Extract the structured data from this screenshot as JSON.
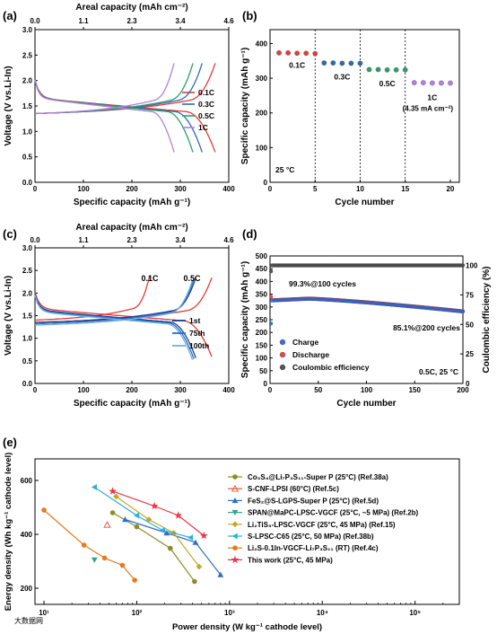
{
  "colors": {
    "c01": "#e83a3a",
    "c03": "#2b6cb0",
    "c05": "#2e9e6e",
    "c1": "#b57edc",
    "dark": "#1d3f8a",
    "mid": "#2f6fbf",
    "light": "#6fb3e6",
    "charge": "#3b6fd4",
    "discharge": "#e04a4a",
    "ce": "#555555"
  },
  "chart_data": [
    {
      "panel": "(a)",
      "type": "line",
      "xlabel": "Specific capacity (mAh g⁻¹)",
      "x2label": "Areal capacity (mAh cm⁻²)",
      "ylabel": "Voltage (V vs.Li-In)",
      "xlim": [
        0,
        400
      ],
      "ylim": [
        0,
        3.0
      ],
      "xticks": [
        "0",
        "100",
        "200",
        "300",
        "400"
      ],
      "yticks": [
        "0.0",
        "0.5",
        "1.0",
        "1.5",
        "2.0",
        "2.5",
        "3.0"
      ],
      "x2ticks": [
        "0.0",
        "1.1",
        "2.3",
        "3.4",
        "4.6"
      ],
      "series": [
        {
          "name": "0.1C",
          "color": "#e83a3a",
          "capacity": 372
        },
        {
          "name": "0.3C",
          "color": "#2b6cb0",
          "capacity": 345
        },
        {
          "name": "0.5C",
          "color": "#2e9e6e",
          "capacity": 326
        },
        {
          "name": "1C",
          "color": "#b57edc",
          "capacity": 287
        }
      ]
    },
    {
      "panel": "(b)",
      "type": "scatter",
      "xlabel": "Cycle number",
      "ylabel": "Specific capacity (mAh g⁻¹)",
      "xlim": [
        0,
        21
      ],
      "ylim": [
        0,
        440
      ],
      "xticks": [
        "0",
        "5",
        "10",
        "15",
        "20"
      ],
      "yticks": [
        "0",
        "100",
        "200",
        "300",
        "400"
      ],
      "note": "25 °C",
      "series": [
        {
          "name": "0.1C",
          "color": "#e83a3a",
          "x": [
            1,
            2,
            3,
            4,
            5
          ],
          "values": [
            373,
            373,
            372,
            372,
            371
          ]
        },
        {
          "name": "0.3C",
          "color": "#2b6cb0",
          "x": [
            6,
            7,
            8,
            9,
            10
          ],
          "values": [
            344,
            344,
            343,
            343,
            343
          ]
        },
        {
          "name": "0.5C",
          "color": "#2e9e6e",
          "x": [
            11,
            12,
            13,
            14,
            15
          ],
          "values": [
            325,
            325,
            324,
            324,
            324
          ]
        },
        {
          "name": "1C",
          "color": "#b57edc",
          "x": [
            16,
            17,
            18,
            19,
            20
          ],
          "values": [
            287,
            287,
            286,
            286,
            286
          ]
        }
      ],
      "labels": [
        "0.1C",
        "0.3C",
        "0.5C",
        "1C",
        "(4.35 mA cm⁻²)"
      ]
    },
    {
      "panel": "(c)",
      "type": "line",
      "xlabel": "Specific capacity (mAh g⁻¹)",
      "x2label": "Areal capacity (mAh cm⁻²)",
      "ylabel": "Voltage (V vs.Li-In)",
      "xlim": [
        0,
        400
      ],
      "ylim": [
        0,
        3.0
      ],
      "xticks": [
        "0",
        "100",
        "200",
        "300",
        "400"
      ],
      "yticks": [
        "0.0",
        "0.5",
        "1.0",
        "1.5",
        "2.0",
        "2.5",
        "3.0"
      ],
      "x2ticks": [
        "0.0",
        "1.1",
        "2.3",
        "3.4",
        "4.6"
      ],
      "labels": [
        "0.1C",
        "0.5C"
      ],
      "series": [
        {
          "name": "1st",
          "color": "#1d3f8a"
        },
        {
          "name": "75th",
          "color": "#2f6fbf"
        },
        {
          "name": "100th",
          "color": "#6fb3e6"
        }
      ]
    },
    {
      "panel": "(d)",
      "type": "scatter",
      "xlabel": "Cycle number",
      "ylabel": "Specific capacity (mAh g⁻¹)",
      "y2label": "Coulombic efficiency (%)",
      "xlim": [
        0,
        200
      ],
      "ylim": [
        0,
        500
      ],
      "y2lim": [
        0,
        108
      ],
      "xticks": [
        "0",
        "50",
        "100",
        "150",
        "200"
      ],
      "yticks": [
        "0",
        "50",
        "100",
        "150",
        "200",
        "250",
        "300",
        "350",
        "400",
        "450",
        "500"
      ],
      "y2ticks": [
        "0",
        "25",
        "50",
        "75",
        "100"
      ],
      "annotations": [
        "99.3%@100 cycles",
        "85.1%@200 cycles",
        "0.5C, 25 °C"
      ],
      "series": [
        {
          "name": "Charge",
          "color": "#3b6fd4",
          "first": 235,
          "start": 325,
          "peak": 332,
          "end": 282
        },
        {
          "name": "Discharge",
          "color": "#e04a4a",
          "first": 340,
          "start": 326,
          "peak": 333,
          "end": 283
        },
        {
          "name": "Coulombic efficiency",
          "color": "#555555",
          "first": 95,
          "value": 100
        }
      ]
    },
    {
      "panel": "(e)",
      "type": "scatter",
      "log_x": true,
      "xlabel": "Power density (W kg⁻¹ cathode level)",
      "ylabel": "Energy density (Wh kg⁻¹ cathode level)",
      "xlim": [
        8,
        300000
      ],
      "ylim": [
        140,
        680
      ],
      "xticks": [
        "10¹",
        "10²",
        "10³",
        "10⁴",
        "10⁵"
      ],
      "yticks": [
        "200",
        "400",
        "600"
      ],
      "series": [
        {
          "name": "Co₃S₄@Li₇P₃S₁₁-Super P (25°C) (Ref.38a)",
          "color": "#8c8c2a",
          "marker": "circle",
          "x": [
            55,
            100,
            230,
            420
          ],
          "y": [
            480,
            428,
            348,
            225
          ]
        },
        {
          "name": "S-CNF-LPSI (60°C) (Ref.5c)",
          "color": "#e0533a",
          "marker": "tri-open",
          "x": [
            48
          ],
          "y": [
            435
          ]
        },
        {
          "name": "FeS₂@S-LGPS-Super P (25°C) (Ref.5d)",
          "color": "#2f6fbf",
          "marker": "tri-up",
          "x": [
            75,
            210,
            430,
            800
          ],
          "y": [
            455,
            405,
            370,
            250
          ]
        },
        {
          "name": "SPAN@MaPC-LPSC-VGCF (25°C, ~5 MPa) (Ref.2b)",
          "color": "#2aa88a",
          "marker": "tri-down",
          "x": [
            35
          ],
          "y": [
            305
          ]
        },
        {
          "name": "Li₂TiS₃-LPSC-VGCF (25°C, 45 MPa) (Ref.15)",
          "color": "#c4a82a",
          "marker": "diamond",
          "x": [
            60,
            135,
            250,
            470
          ],
          "y": [
            540,
            455,
            405,
            280
          ]
        },
        {
          "name": "S-LPSC-C65 (25°C, 50 MPa) (Ref.38b)",
          "color": "#2ab0d8",
          "marker": "tri-left",
          "x": [
            35,
            100,
            190,
            380
          ],
          "y": [
            575,
            470,
            415,
            388
          ]
        },
        {
          "name": "Li₂S-0.1In-VGCF-Li₇P₃S₁₁ (RT) (Ref.4c)",
          "color": "#e87a1e",
          "marker": "circle",
          "x": [
            10,
            27,
            45,
            70,
            95
          ],
          "y": [
            490,
            360,
            312,
            285,
            230
          ]
        },
        {
          "name": "This work (25°C, 45 MPa)",
          "color": "#e8374a",
          "marker": "star",
          "x": [
            55,
            155,
            280,
            530
          ],
          "y": [
            560,
            505,
            470,
            395
          ]
        }
      ]
    }
  ],
  "watermark": "大数据网"
}
